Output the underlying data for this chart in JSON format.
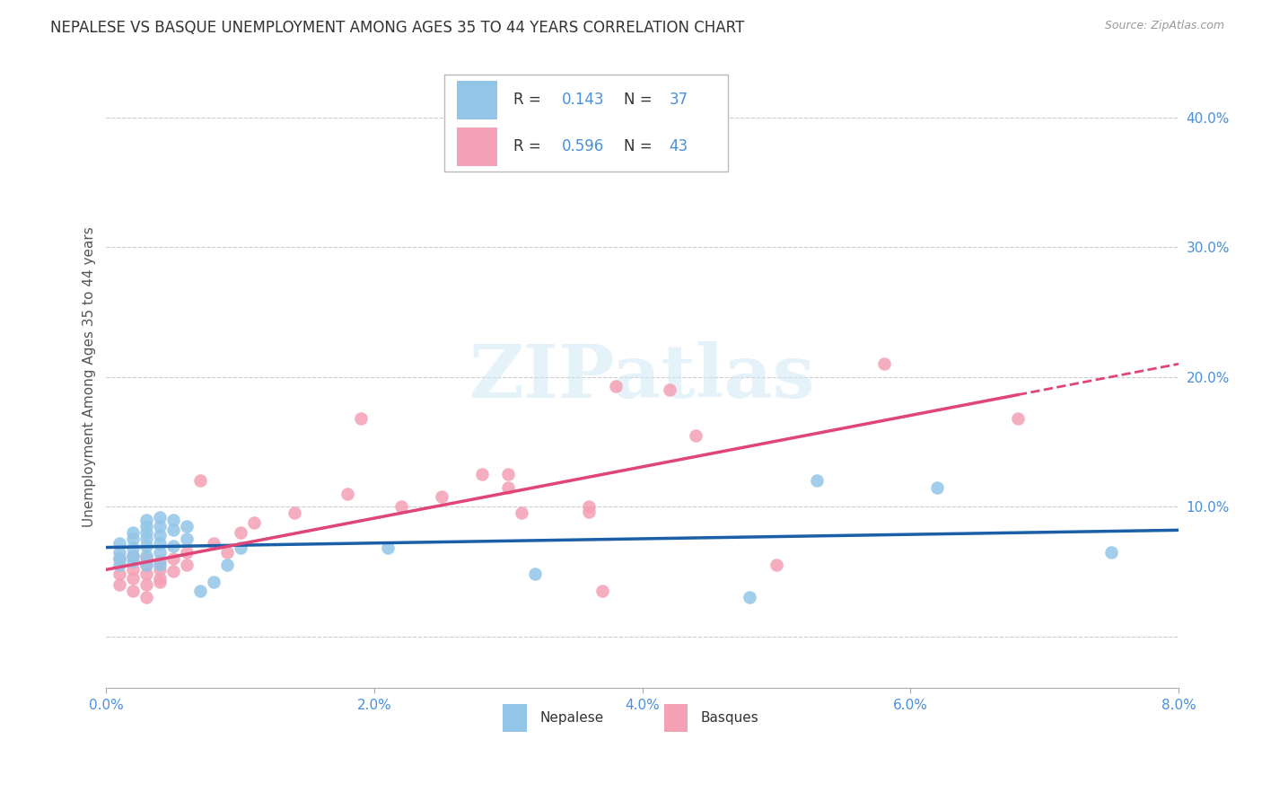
{
  "title": "NEPALESE VS BASQUE UNEMPLOYMENT AMONG AGES 35 TO 44 YEARS CORRELATION CHART",
  "source": "Source: ZipAtlas.com",
  "ylabel": "Unemployment Among Ages 35 to 44 years",
  "xlim": [
    0.0,
    0.08
  ],
  "ylim": [
    -0.04,
    0.44
  ],
  "xticks": [
    0.0,
    0.02,
    0.04,
    0.06,
    0.08
  ],
  "xticklabels": [
    "0.0%",
    "2.0%",
    "4.0%",
    "6.0%",
    "8.0%"
  ],
  "yticks": [
    0.0,
    0.1,
    0.2,
    0.3,
    0.4
  ],
  "yticklabels": [
    "",
    "10.0%",
    "20.0%",
    "30.0%",
    "40.0%"
  ],
  "nepalese_R": 0.143,
  "nepalese_N": 37,
  "basque_R": 0.596,
  "basque_N": 43,
  "nepalese_color": "#92c5e8",
  "basque_color": "#f4a0b5",
  "nepalese_line_color": "#1a5fa8",
  "basque_line_color": "#e0457a",
  "background_color": "#ffffff",
  "grid_color": "#cccccc",
  "nepalese_x": [
    0.001,
    0.001,
    0.001,
    0.001,
    0.002,
    0.002,
    0.002,
    0.002,
    0.002,
    0.003,
    0.003,
    0.003,
    0.003,
    0.003,
    0.003,
    0.003,
    0.004,
    0.004,
    0.004,
    0.004,
    0.004,
    0.004,
    0.005,
    0.005,
    0.005,
    0.006,
    0.006,
    0.007,
    0.008,
    0.009,
    0.01,
    0.021,
    0.032,
    0.048,
    0.053,
    0.062,
    0.075
  ],
  "nepalese_y": [
    0.065,
    0.072,
    0.06,
    0.055,
    0.068,
    0.075,
    0.062,
    0.058,
    0.08,
    0.09,
    0.085,
    0.08,
    0.075,
    0.07,
    0.062,
    0.055,
    0.092,
    0.085,
    0.078,
    0.072,
    0.065,
    0.055,
    0.09,
    0.082,
    0.07,
    0.085,
    0.075,
    0.035,
    0.042,
    0.055,
    0.068,
    0.068,
    0.048,
    0.03,
    0.12,
    0.115,
    0.065
  ],
  "basque_x": [
    0.001,
    0.001,
    0.001,
    0.002,
    0.002,
    0.002,
    0.002,
    0.003,
    0.003,
    0.003,
    0.003,
    0.003,
    0.004,
    0.004,
    0.004,
    0.004,
    0.005,
    0.005,
    0.006,
    0.006,
    0.007,
    0.008,
    0.009,
    0.01,
    0.011,
    0.014,
    0.018,
    0.019,
    0.022,
    0.025,
    0.028,
    0.03,
    0.03,
    0.031,
    0.036,
    0.036,
    0.037,
    0.038,
    0.042,
    0.044,
    0.05,
    0.058,
    0.068
  ],
  "basque_y": [
    0.048,
    0.04,
    0.06,
    0.052,
    0.045,
    0.062,
    0.035,
    0.055,
    0.048,
    0.06,
    0.04,
    0.03,
    0.058,
    0.045,
    0.052,
    0.042,
    0.06,
    0.05,
    0.065,
    0.055,
    0.12,
    0.072,
    0.065,
    0.08,
    0.088,
    0.095,
    0.11,
    0.168,
    0.1,
    0.108,
    0.125,
    0.115,
    0.125,
    0.095,
    0.096,
    0.1,
    0.035,
    0.193,
    0.19,
    0.155,
    0.055,
    0.21,
    0.168
  ],
  "watermark": "ZIPatlas",
  "title_fontsize": 12,
  "axis_label_fontsize": 11,
  "tick_fontsize": 11,
  "legend_fontsize": 12
}
